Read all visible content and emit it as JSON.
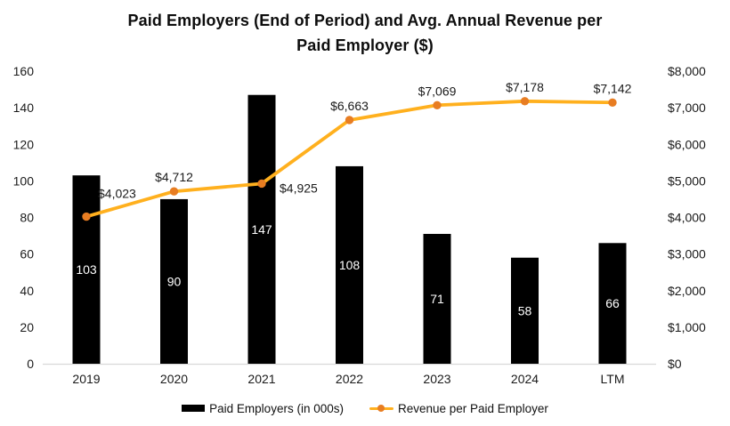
{
  "title": {
    "text": "Paid Employers (End of Period) and Avg. Annual Revenue per Paid Employer ($)",
    "lines": [
      "Paid Employers (End of Period) and Avg. Annual Revenue per",
      "Paid Employer ($)"
    ]
  },
  "chart_data": {
    "type": "combo-bar-line",
    "title": "Paid Employers (End of Period) and Avg. Annual Revenue per Paid Employer ($)",
    "categories": [
      "2019",
      "2020",
      "2021",
      "2022",
      "2023",
      "2024",
      "LTM"
    ],
    "series": [
      {
        "name": "Paid Employers (in 000s)",
        "type": "bar",
        "axis": "left",
        "color": "#000000",
        "label_color": "#ffffff",
        "values": [
          103,
          90,
          147,
          108,
          71,
          58,
          66
        ],
        "labels": [
          "103",
          "90",
          "147",
          "108",
          "71",
          "58",
          "66"
        ]
      },
      {
        "name": "Revenue per Paid Employer",
        "type": "line",
        "axis": "right",
        "color": "#FFB01E",
        "marker_color": "#E87D22",
        "values": [
          4023,
          4712,
          4925,
          6663,
          7069,
          7178,
          7142
        ],
        "labels": [
          "$4,023",
          "$4,712",
          "$4,925",
          "$6,663",
          "$7,069",
          "$7,178",
          "$7,142"
        ],
        "label_placements": [
          "right-up",
          "above",
          "right-down",
          "above",
          "above",
          "above",
          "above"
        ]
      }
    ],
    "left_axis": {
      "min": 0,
      "max": 160,
      "step": 20,
      "tick_labels": [
        "0",
        "20",
        "40",
        "60",
        "80",
        "100",
        "120",
        "140",
        "160"
      ]
    },
    "right_axis": {
      "min": 0,
      "max": 8000,
      "step": 1000,
      "tick_labels": [
        "$0",
        "$1,000",
        "$2,000",
        "$3,000",
        "$4,000",
        "$5,000",
        "$6,000",
        "$7,000",
        "$8,000"
      ]
    },
    "gridlines": false,
    "axis_line_color": "#D9D9D9",
    "text_color": "#1a1a1a",
    "background": "#ffffff",
    "legend_position": "bottom",
    "legend": [
      {
        "label": "Paid Employers (in 000s)",
        "swatch": "bar",
        "color": "#000000"
      },
      {
        "label": "Revenue per Paid Employer",
        "swatch": "line",
        "color": "#FFB01E",
        "marker_color": "#E87D22"
      }
    ]
  }
}
